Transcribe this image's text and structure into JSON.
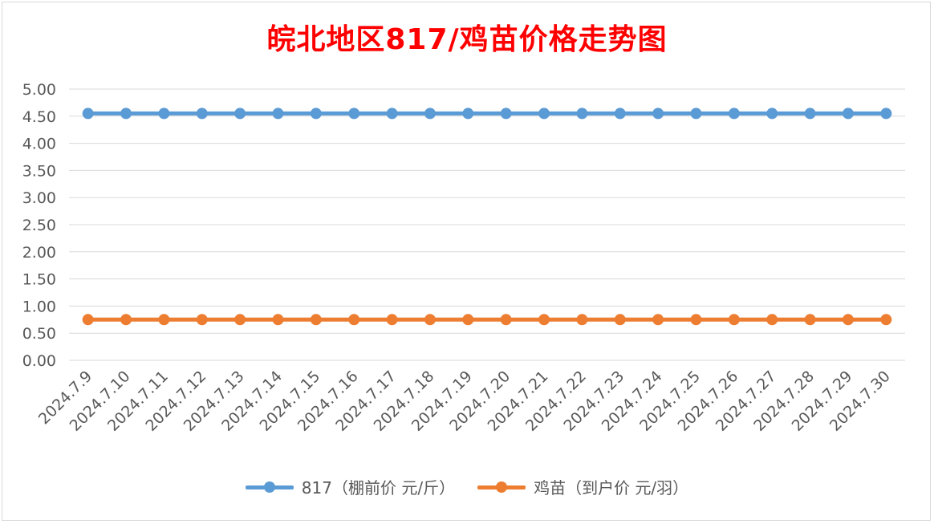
{
  "chart_data": {
    "type": "line",
    "title": "皖北地区817/鸡苗价格走势图",
    "categories": [
      "2024.7.9",
      "2024.7.10",
      "2024.7.11",
      "2024.7.12",
      "2024.7.13",
      "2024.7.14",
      "2024.7.15",
      "2024.7.16",
      "2024.7.17",
      "2024.7.18",
      "2024.7.19",
      "2024.7.20",
      "2024.7.21",
      "2024.7.22",
      "2024.7.23",
      "2024.7.24",
      "2024.7.25",
      "2024.7.26",
      "2024.7.27",
      "2024.7.28",
      "2024.7.29",
      "2024.7.30"
    ],
    "series": [
      {
        "name": "817（棚前价 元/斤）",
        "color": "#5b9bd5",
        "values": [
          4.55,
          4.55,
          4.55,
          4.55,
          4.55,
          4.55,
          4.55,
          4.55,
          4.55,
          4.55,
          4.55,
          4.55,
          4.55,
          4.55,
          4.55,
          4.55,
          4.55,
          4.55,
          4.55,
          4.55,
          4.55,
          4.55
        ]
      },
      {
        "name": "鸡苗（到户价 元/羽）",
        "color": "#ed7d31",
        "values": [
          0.75,
          0.75,
          0.75,
          0.75,
          0.75,
          0.75,
          0.75,
          0.75,
          0.75,
          0.75,
          0.75,
          0.75,
          0.75,
          0.75,
          0.75,
          0.75,
          0.75,
          0.75,
          0.75,
          0.75,
          0.75,
          0.75
        ]
      }
    ],
    "ylim": [
      0,
      5
    ],
    "yticks": [
      "0.00",
      "0.50",
      "1.00",
      "1.50",
      "2.00",
      "2.50",
      "3.00",
      "3.50",
      "4.00",
      "4.50",
      "5.00"
    ],
    "grid": true,
    "legend_position": "bottom",
    "title_color": "#ff0000"
  }
}
